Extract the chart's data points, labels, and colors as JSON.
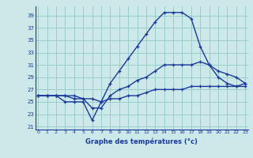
{
  "title": "Graphe des températures (°c)",
  "bg_color": "#cce8e8",
  "grid_color": "#99cccc",
  "line_color": "#1a3a9a",
  "x_ticks": [
    0,
    1,
    2,
    3,
    4,
    5,
    6,
    7,
    8,
    9,
    10,
    11,
    12,
    13,
    14,
    15,
    16,
    17,
    18,
    19,
    20,
    21,
    22,
    23
  ],
  "y_ticks": [
    21,
    23,
    25,
    27,
    29,
    31,
    33,
    35,
    37,
    39
  ],
  "xlim": [
    -0.3,
    23.3
  ],
  "ylim": [
    20.5,
    40.5
  ],
  "line1_x": [
    0,
    1,
    2,
    3,
    4,
    5,
    6,
    7,
    8,
    9,
    10,
    11,
    12,
    13,
    14,
    15,
    16,
    17,
    18,
    19,
    20,
    21,
    22,
    23
  ],
  "line1_y": [
    26,
    26,
    26,
    25,
    25,
    25,
    22,
    25,
    28,
    30,
    32,
    34,
    36,
    38,
    39.5,
    39.5,
    39.5,
    38.5,
    34,
    31,
    29,
    28,
    27.5,
    27.5
  ],
  "line2_x": [
    0,
    1,
    2,
    3,
    4,
    5,
    6,
    7,
    8,
    9,
    10,
    11,
    12,
    13,
    14,
    15,
    16,
    17,
    18,
    19,
    20,
    21,
    22,
    23
  ],
  "line2_y": [
    26,
    26,
    26,
    26,
    25.5,
    25.5,
    24,
    24,
    26,
    27,
    27.5,
    28.5,
    29,
    30,
    31,
    31,
    31,
    31,
    31.5,
    31,
    30,
    29.5,
    29,
    28
  ],
  "line3_x": [
    0,
    1,
    2,
    3,
    4,
    5,
    6,
    7,
    8,
    9,
    10,
    11,
    12,
    13,
    14,
    15,
    16,
    17,
    18,
    19,
    20,
    21,
    22,
    23
  ],
  "line3_y": [
    26,
    26,
    26,
    26,
    26,
    25.5,
    25.5,
    25,
    25.5,
    25.5,
    26,
    26,
    26.5,
    27,
    27,
    27,
    27,
    27.5,
    27.5,
    27.5,
    27.5,
    27.5,
    27.5,
    28
  ]
}
